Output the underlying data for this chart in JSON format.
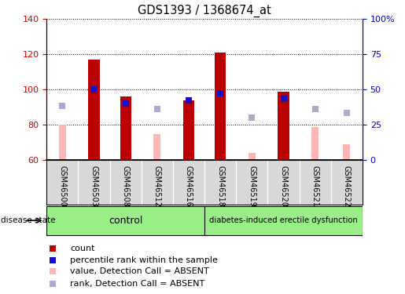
{
  "title": "GDS1393 / 1368674_at",
  "samples": [
    "GSM46500",
    "GSM46503",
    "GSM46508",
    "GSM46512",
    "GSM46516",
    "GSM46518",
    "GSM46519",
    "GSM46520",
    "GSM46521",
    "GSM46522"
  ],
  "ylim_left": [
    60,
    140
  ],
  "ylim_right": [
    0,
    100
  ],
  "baseline": 60,
  "red_bar_tops": [
    60,
    117,
    96,
    60,
    94,
    121,
    60,
    99,
    60,
    60
  ],
  "pink_bar_tops": [
    80,
    60,
    60,
    75,
    60,
    60,
    64,
    60,
    79,
    69
  ],
  "blue_sq_y": [
    -1,
    100,
    92,
    -1,
    94,
    98,
    -1,
    95,
    -1,
    -1
  ],
  "lavender_sq_y": [
    91,
    -1,
    -1,
    89,
    -1,
    -1,
    84,
    -1,
    89,
    87
  ],
  "red_bar_color": "#bb0000",
  "pink_bar_color": "#ffb6b6",
  "blue_sq_color": "#1111cc",
  "lavender_sq_color": "#aaaacc",
  "left_tick_color": "#cc0000",
  "right_tick_color": "#0000cc",
  "yticks_left": [
    60,
    80,
    100,
    120,
    140
  ],
  "yticks_right": [
    0,
    25,
    50,
    75,
    100
  ],
  "ytick_labels_right": [
    "0",
    "25",
    "50",
    "75",
    "100%"
  ],
  "control_count": 5,
  "control_label": "control",
  "disease_label": "diabetes-induced erectile dysfunction",
  "disease_state_label": "disease state",
  "legend_items": [
    {
      "label": "count",
      "color": "#bb0000"
    },
    {
      "label": "percentile rank within the sample",
      "color": "#1111cc"
    },
    {
      "label": "value, Detection Call = ABSENT",
      "color": "#ffb6b6"
    },
    {
      "label": "rank, Detection Call = ABSENT",
      "color": "#aaaacc"
    }
  ],
  "red_bar_width": 0.35,
  "pink_bar_width": 0.22,
  "sq_size": 32,
  "figsize": [
    5.15,
    3.75
  ],
  "dpi": 100,
  "green_color": "#99ee88",
  "gray_label_bg": "#d8d8d8"
}
